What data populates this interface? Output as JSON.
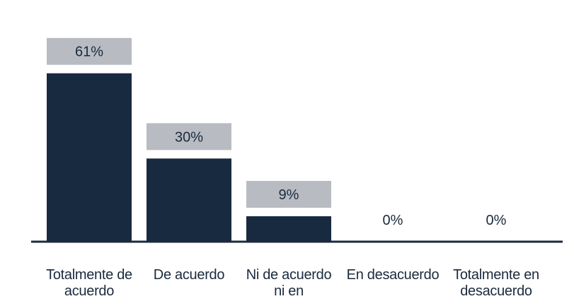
{
  "chart_data": {
    "type": "bar",
    "categories": [
      [
        "Totalmente de",
        "acuerdo"
      ],
      [
        "De acuerdo"
      ],
      [
        "Ni de acuerdo",
        "ni en"
      ],
      [
        "En desacuerdo"
      ],
      [
        "Totalmente en",
        "desacuerdo"
      ]
    ],
    "values": [
      61,
      30,
      9,
      0,
      0
    ],
    "value_labels": [
      "61%",
      "30%",
      "9%",
      "0%",
      "0%"
    ],
    "ylim": [
      0,
      70
    ],
    "grid": false,
    "colors": {
      "bar": "#172a40",
      "label_box": "#b8bcc2",
      "axis": "#1b2a3d",
      "text": "#1b2a3d"
    }
  }
}
